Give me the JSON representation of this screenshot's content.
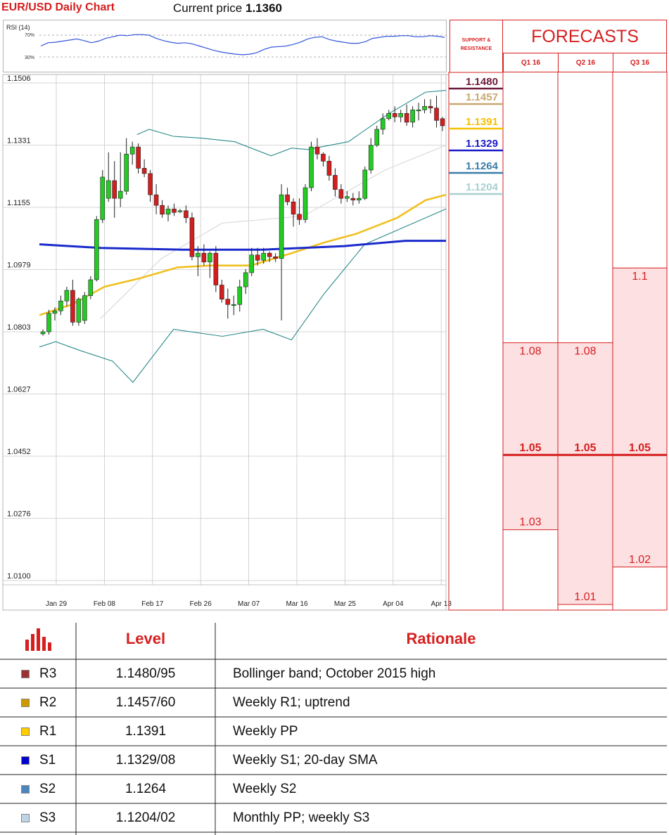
{
  "header": {
    "title": "EUR/USD Daily Chart",
    "price_label": "Current price",
    "price_value": "1.1360"
  },
  "rsi": {
    "title": "RSI (14)",
    "levels": [
      "70%",
      "30%"
    ],
    "values": [
      50,
      56,
      57,
      59,
      61,
      63,
      60,
      56,
      59,
      64,
      67,
      70,
      69,
      71,
      71,
      70,
      64,
      60,
      57,
      55,
      56,
      54,
      50,
      46,
      42,
      39,
      37,
      35,
      34,
      35,
      38,
      44,
      48,
      49,
      50,
      53,
      57,
      63,
      66,
      67,
      62,
      59,
      57,
      55,
      55,
      58,
      64,
      66,
      68,
      68,
      69,
      69,
      67,
      67,
      69,
      68,
      66
    ]
  },
  "chart_data": {
    "type": "candlestick",
    "title": "EUR/USD Daily Chart",
    "ylabels": [
      "1.1506",
      "1.1331",
      "1.1155",
      "1.0979",
      "1.0803",
      "1.0627",
      "1.0452",
      "1.0276",
      "1.0100"
    ],
    "ylim": [
      1.01,
      1.1506
    ],
    "xlabels": [
      "Jan 29",
      "Feb 08",
      "Feb 17",
      "Feb 26",
      "Mar 07",
      "Mar 16",
      "Mar 25",
      "Apr 04",
      "Apr 13"
    ],
    "grid": true,
    "candles": [
      [
        1.0797,
        1.081,
        1.0792,
        1.0803
      ],
      [
        1.0803,
        1.0865,
        1.0795,
        1.0855
      ],
      [
        1.0855,
        1.0872,
        1.0835,
        1.0862
      ],
      [
        1.0862,
        1.0905,
        1.085,
        1.089
      ],
      [
        1.089,
        1.093,
        1.0875,
        1.092
      ],
      [
        1.092,
        1.095,
        1.082,
        1.083
      ],
      [
        1.083,
        1.09,
        1.082,
        1.0895
      ],
      [
        1.0835,
        1.0915,
        1.0825,
        1.0905
      ],
      [
        1.0905,
        1.096,
        1.0895,
        1.095
      ],
      [
        1.095,
        1.113,
        1.0945,
        1.112
      ],
      [
        1.112,
        1.126,
        1.111,
        1.124
      ],
      [
        1.118,
        1.131,
        1.117,
        1.123
      ],
      [
        1.123,
        1.1285,
        1.1125,
        1.118
      ],
      [
        1.118,
        1.131,
        1.1155,
        1.12
      ],
      [
        1.12,
        1.135,
        1.119,
        1.1305
      ],
      [
        1.1305,
        1.134,
        1.1275,
        1.1325
      ],
      [
        1.1325,
        1.1335,
        1.125,
        1.1265
      ],
      [
        1.1265,
        1.129,
        1.124,
        1.125
      ],
      [
        1.125,
        1.126,
        1.117,
        1.119
      ],
      [
        1.119,
        1.122,
        1.1135,
        1.116
      ],
      [
        1.116,
        1.1175,
        1.1125,
        1.1135
      ],
      [
        1.1135,
        1.116,
        1.1115,
        1.115
      ],
      [
        1.115,
        1.1165,
        1.113,
        1.114
      ],
      [
        1.1145,
        1.115,
        1.1138,
        1.1145
      ],
      [
        1.1145,
        1.116,
        1.111,
        1.1125
      ],
      [
        1.1125,
        1.114,
        1.1005,
        1.1015
      ],
      [
        1.1015,
        1.1045,
        1.096,
        1.1025
      ],
      [
        1.1025,
        1.105,
        1.099,
        1.1
      ],
      [
        1.1,
        1.103,
        1.0955,
        1.1025
      ],
      [
        1.1025,
        1.1045,
        1.0915,
        1.0935
      ],
      [
        1.0935,
        1.095,
        1.0885,
        1.0895
      ],
      [
        1.0895,
        1.0925,
        1.084,
        1.088
      ],
      [
        1.088,
        1.0905,
        1.085,
        1.088
      ],
      [
        1.088,
        1.095,
        1.086,
        1.093
      ],
      [
        1.093,
        1.098,
        1.091,
        1.097
      ],
      [
        1.097,
        1.104,
        1.096,
        1.102
      ],
      [
        1.102,
        1.104,
        1.099,
        1.1005
      ],
      [
        1.1005,
        1.104,
        1.0995,
        1.1025
      ],
      [
        1.1025,
        1.103,
        1.1,
        1.1015
      ],
      [
        1.1015,
        1.1025,
        1.1,
        1.101
      ],
      [
        1.101,
        1.122,
        1.0835,
        1.119
      ],
      [
        1.119,
        1.121,
        1.116,
        1.117
      ],
      [
        1.117,
        1.118,
        1.11,
        1.1135
      ],
      [
        1.1135,
        1.118,
        1.1105,
        1.112
      ],
      [
        1.112,
        1.122,
        1.111,
        1.121
      ],
      [
        1.121,
        1.134,
        1.12,
        1.1325
      ],
      [
        1.1325,
        1.135,
        1.129,
        1.1305
      ],
      [
        1.1305,
        1.131,
        1.127,
        1.1285
      ],
      [
        1.1285,
        1.13,
        1.123,
        1.1245
      ],
      [
        1.1245,
        1.1265,
        1.1185,
        1.1205
      ],
      [
        1.1205,
        1.122,
        1.1165,
        1.118
      ],
      [
        1.118,
        1.12,
        1.117,
        1.1185
      ],
      [
        1.118,
        1.1195,
        1.116,
        1.1175
      ],
      [
        1.1175,
        1.12,
        1.1165,
        1.118
      ],
      [
        1.118,
        1.127,
        1.1175,
        1.126
      ],
      [
        1.126,
        1.135,
        1.125,
        1.133
      ],
      [
        1.133,
        1.1385,
        1.1325,
        1.1375
      ],
      [
        1.1375,
        1.142,
        1.136,
        1.1405
      ],
      [
        1.1405,
        1.143,
        1.14,
        1.142
      ],
      [
        1.142,
        1.144,
        1.1395,
        1.141
      ],
      [
        1.141,
        1.143,
        1.1395,
        1.142
      ],
      [
        1.142,
        1.1445,
        1.1385,
        1.1395
      ],
      [
        1.1395,
        1.144,
        1.138,
        1.143
      ],
      [
        1.143,
        1.145,
        1.14,
        1.143
      ],
      [
        1.143,
        1.146,
        1.142,
        1.144
      ],
      [
        1.144,
        1.146,
        1.142,
        1.1435
      ],
      [
        1.1435,
        1.147,
        1.138,
        1.14
      ],
      [
        1.1405,
        1.141,
        1.137,
        1.1385
      ]
    ],
    "overlays": {
      "sma_grey": [
        1.1175,
        1.124,
        1.1289,
        1.132
      ],
      "sma_yellow": [
        1.0855,
        1.093,
        1.099,
        1.1,
        1.1032,
        1.1045,
        1.1088,
        1.1135,
        1.121,
        1.124
      ],
      "sma_blue": [
        1.105,
        1.1034,
        1.1045,
        1.1055,
        1.106
      ],
      "boll_upper": [
        1.1375,
        1.148
      ],
      "boll_lower": [
        1.0775,
        1.115
      ]
    },
    "support_resistance": [
      {
        "label": "1.1480",
        "value": 1.148,
        "color": "#6e1a3a"
      },
      {
        "label": "1.1457",
        "value": 1.1457,
        "color": "#c8a870"
      },
      {
        "label": "1.1391",
        "value": 1.1391,
        "color": "#f5c000"
      },
      {
        "label": "1.1329",
        "value": 1.1329,
        "color": "#1a1ac8"
      },
      {
        "label": "1.1264",
        "value": 1.1264,
        "color": "#3a7ca8"
      },
      {
        "label": "1.1204",
        "value": 1.1204,
        "color": "#a8d0d0"
      }
    ]
  },
  "forecasts": {
    "side_header": "SUPPORT & RESISTANCE",
    "title": "FORECASTS",
    "quarters": [
      {
        "label": "Q1 16",
        "high": "1.08",
        "mid": "1.05",
        "low": "1.03"
      },
      {
        "label": "Q2 16",
        "high": "1.08",
        "mid": "1.05",
        "low": "1.01"
      },
      {
        "label": "Q3 16",
        "high": "1.1",
        "mid": "1.05",
        "low": "1.02"
      }
    ]
  },
  "table": {
    "headers": {
      "level": "Level",
      "rationale": "Rationale"
    },
    "rows": [
      {
        "name": "R3",
        "level": "1.1480/95",
        "rationale": "Bollinger band; October 2015 high",
        "color": "#993333"
      },
      {
        "name": "R2",
        "level": "1.1457/60",
        "rationale": "Weekly R1; uptrend",
        "color": "#cc9900"
      },
      {
        "name": "R1",
        "level": "1.1391",
        "rationale": "Weekly PP",
        "color": "#ffcc00"
      },
      {
        "name": "S1",
        "level": "1.1329/08",
        "rationale": "Weekly S1; 20-day SMA",
        "color": "#0000cc"
      },
      {
        "name": "S2",
        "level": "1.1264",
        "rationale": "Weekly S2",
        "color": "#4d85bf"
      },
      {
        "name": "S3",
        "level": "1.1204/02",
        "rationale": "Monthly PP; weekly S3",
        "color": "#c0d4e8"
      }
    ]
  }
}
